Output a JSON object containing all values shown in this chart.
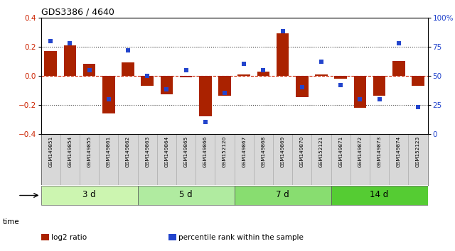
{
  "title": "GDS3386 / 4640",
  "samples": [
    "GSM149851",
    "GSM149854",
    "GSM149855",
    "GSM149861",
    "GSM149862",
    "GSM149863",
    "GSM149864",
    "GSM149865",
    "GSM149866",
    "GSM152120",
    "GSM149867",
    "GSM149868",
    "GSM149869",
    "GSM149870",
    "GSM152121",
    "GSM149871",
    "GSM149872",
    "GSM149873",
    "GSM149874",
    "GSM152123"
  ],
  "log2_ratio": [
    0.17,
    0.21,
    0.08,
    -0.26,
    0.09,
    -0.07,
    -0.13,
    -0.01,
    -0.28,
    -0.14,
    0.01,
    0.03,
    0.29,
    -0.15,
    0.01,
    -0.02,
    -0.22,
    -0.14,
    0.1,
    -0.07
  ],
  "percentile": [
    80,
    78,
    55,
    30,
    72,
    50,
    38,
    55,
    10,
    35,
    60,
    55,
    88,
    40,
    62,
    42,
    30,
    30,
    78,
    23
  ],
  "groups": [
    {
      "label": "3 d",
      "start": 0,
      "end": 5,
      "color": "#ccf5b0"
    },
    {
      "label": "5 d",
      "start": 5,
      "end": 10,
      "color": "#b0eba0"
    },
    {
      "label": "7 d",
      "start": 10,
      "end": 15,
      "color": "#88dd70"
    },
    {
      "label": "14 d",
      "start": 15,
      "end": 20,
      "color": "#55cc33"
    }
  ],
  "bar_color": "#aa2200",
  "dot_color": "#2244cc",
  "ylim_left": [
    -0.4,
    0.4
  ],
  "ylim_right": [
    0,
    100
  ],
  "yticks_left": [
    -0.4,
    -0.2,
    0.0,
    0.2,
    0.4
  ],
  "yticks_right": [
    0,
    25,
    50,
    75,
    100
  ],
  "yticklabels_right": [
    "0",
    "25",
    "50",
    "75",
    "100%"
  ],
  "hline_dotted": [
    0.2,
    -0.2
  ],
  "hline_dashed": [
    0.0
  ],
  "background_color": "#ffffff",
  "tick_label_color_left": "#cc2200",
  "tick_label_color_right": "#2244cc",
  "label_bg_color": "#d8d8d8",
  "legend_items": [
    {
      "color": "#aa2200",
      "marker": "s",
      "label": "log2 ratio"
    },
    {
      "color": "#2244cc",
      "marker": "s",
      "label": "percentile rank within the sample"
    }
  ]
}
